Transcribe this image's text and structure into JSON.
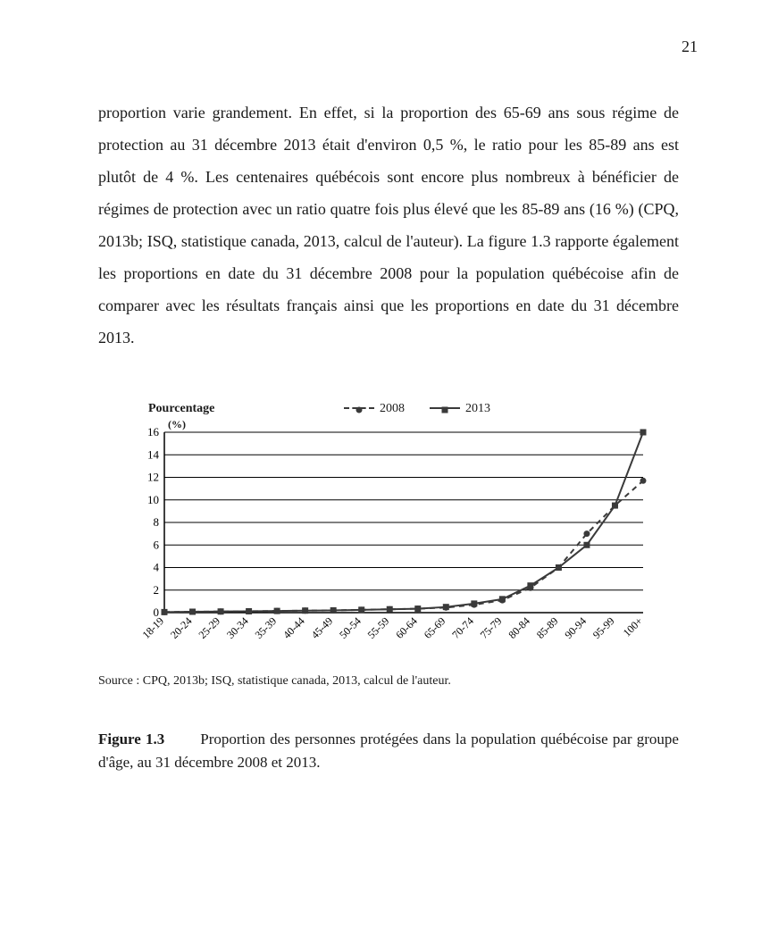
{
  "page_number": "21",
  "body_paragraph": "proportion varie grandement. En effet, si la proportion des 65-69 ans sous régime de protection au 31 décembre 2013 était d'environ 0,5 %, le ratio pour les 85-89 ans est plutôt de 4 %. Les centenaires québécois sont encore plus nombreux à bénéficier de régimes de protection avec un ratio quatre fois plus élevé que les 85-89 ans (16 %) (CPQ, 2013b; ISQ, statistique canada, 2013, calcul de l'auteur). La figure 1.3 rapporte également les proportions en date du 31 décembre 2008 pour la population québécoise afin de comparer avec les résultats français ainsi que les proportions en date du 31 décembre 2013.",
  "chart": {
    "type": "line",
    "y_title": "Pourcentage",
    "y_title_sub": "(%)",
    "legend_2008": "2008",
    "legend_2013": "2013",
    "categories": [
      "18-19",
      "20-24",
      "25-29",
      "30-34",
      "35-39",
      "40-44",
      "45-49",
      "50-54",
      "55-59",
      "60-64",
      "65-69",
      "70-74",
      "75-79",
      "80-84",
      "85-89",
      "90-94",
      "95-99",
      "100+"
    ],
    "series_2008": [
      0.05,
      0.08,
      0.1,
      0.12,
      0.15,
      0.18,
      0.2,
      0.25,
      0.3,
      0.35,
      0.45,
      0.7,
      1.1,
      2.2,
      4.0,
      7.0,
      9.5,
      11.7
    ],
    "series_2013": [
      0.05,
      0.08,
      0.1,
      0.12,
      0.15,
      0.18,
      0.2,
      0.25,
      0.3,
      0.35,
      0.5,
      0.8,
      1.2,
      2.4,
      4.0,
      6.0,
      9.5,
      16.0
    ],
    "ylim": [
      0,
      16
    ],
    "ytick_step": 2,
    "yticks": [
      0,
      2,
      4,
      6,
      8,
      10,
      12,
      14,
      16
    ],
    "color_2008": "#3a3a3a",
    "color_2013": "#3a3a3a",
    "marker_2008": "circle",
    "marker_2013": "square",
    "dash_2008": "6,5",
    "dash_2013": "none",
    "line_width": 2,
    "marker_size": 7,
    "axis_color": "#000000",
    "grid_color": "#000000",
    "grid_width": 1,
    "background_color": "#ffffff",
    "tick_fontsize": 13,
    "xtick_fontsize": 12,
    "xtick_rotation": -45
  },
  "source_text": "Source : CPQ, 2013b; ISQ, statistique canada, 2013, calcul de l'auteur.",
  "figure_caption_label": "Figure 1.3",
  "figure_caption_text": "Proportion des personnes protégées dans la population québécoise par groupe d'âge, au 31 décembre 2008 et 2013."
}
